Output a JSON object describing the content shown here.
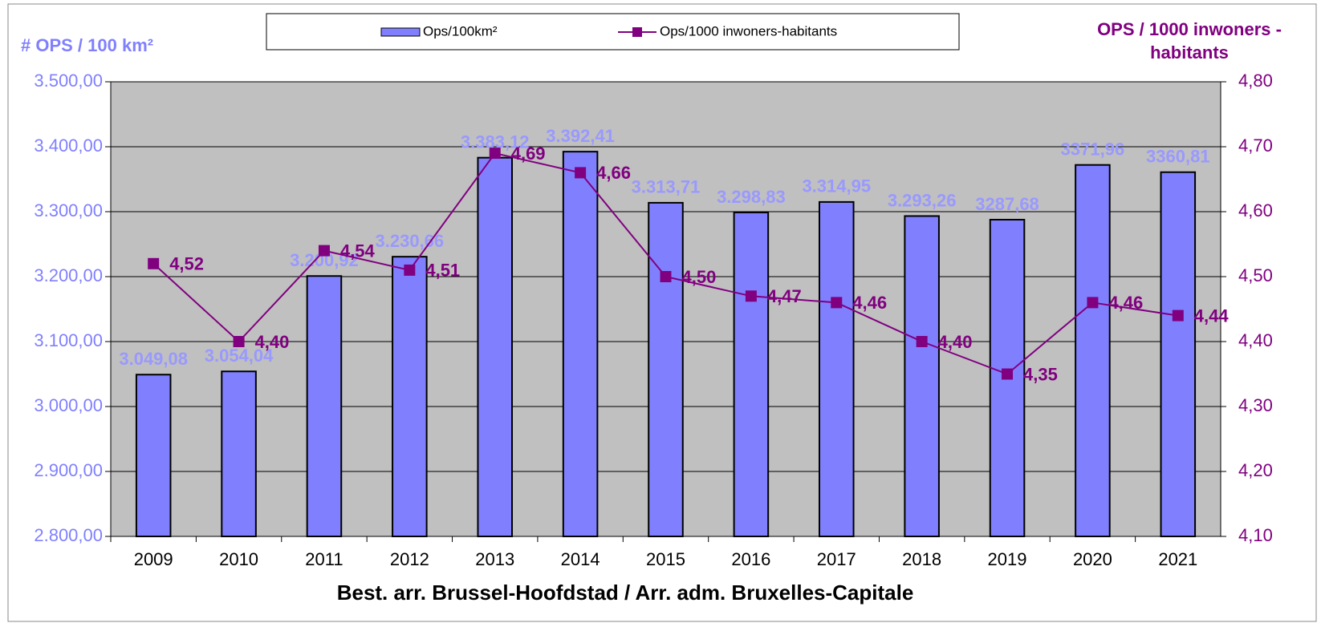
{
  "chart_data": {
    "type": "bar_line",
    "xlabel": "Best. arr. Brussel-Hoofdstad / Arr. adm. Bruxelles-Capitale",
    "ylabel": "# OPS / 100 km²",
    "y2label": "OPS / 1000 inwoners - habitants",
    "categories": [
      "2009",
      "2010",
      "2011",
      "2012",
      "2013",
      "2014",
      "2015",
      "2016",
      "2017",
      "2018",
      "2019",
      "2020",
      "2021"
    ],
    "series": [
      {
        "name": "Ops/100km²",
        "color": "#8080ff",
        "type": "bar",
        "values": [
          3049.08,
          3054.04,
          3200.92,
          3230.66,
          3383.12,
          3392.41,
          3313.71,
          3298.83,
          3314.95,
          3293.26,
          3287.68,
          3371.96,
          3360.81
        ],
        "value_labels": [
          "3.049,08",
          "3.054,04",
          "3.200,92",
          "3.230,66",
          "3.383,12",
          "3.392,41",
          "3.313,71",
          "3.298,83",
          "3.314,95",
          "3.293,26",
          "3287,68",
          "3371,96",
          "3360,81"
        ]
      },
      {
        "name": "Ops/1000 inwoners-habitants",
        "color": "#800080",
        "type": "line",
        "axis": "y2",
        "values": [
          4.52,
          4.4,
          4.54,
          4.51,
          4.69,
          4.66,
          4.5,
          4.47,
          4.46,
          4.4,
          4.35,
          4.46,
          4.44
        ],
        "value_labels": [
          "4,52",
          "4,40",
          "4,54",
          "4,51",
          "4,69",
          "4,66",
          "4,50",
          "4,47",
          "4,46",
          "4,40",
          "4,35",
          "4,46",
          "4,44"
        ]
      }
    ],
    "ylim": [
      2800,
      3500
    ],
    "yticks": [
      {
        "value": 2800,
        "label": "2.800,00"
      },
      {
        "value": 2900,
        "label": "2.900,00"
      },
      {
        "value": 3000,
        "label": "3.000,00"
      },
      {
        "value": 3100,
        "label": "3.100,00"
      },
      {
        "value": 3200,
        "label": "3.200,00"
      },
      {
        "value": 3300,
        "label": "3.300,00"
      },
      {
        "value": 3400,
        "label": "3.400,00"
      },
      {
        "value": 3500,
        "label": "3.500,00"
      }
    ],
    "y2lim": [
      4.1,
      4.8
    ],
    "y2ticks": [
      {
        "value": 4.1,
        "label": "4,10"
      },
      {
        "value": 4.2,
        "label": "4,20"
      },
      {
        "value": 4.3,
        "label": "4,30"
      },
      {
        "value": 4.4,
        "label": "4,40"
      },
      {
        "value": 4.5,
        "label": "4,50"
      },
      {
        "value": 4.6,
        "label": "4,60"
      },
      {
        "value": 4.7,
        "label": "4,70"
      },
      {
        "value": 4.8,
        "label": "4,80"
      }
    ],
    "grid": true,
    "legend": "top"
  }
}
